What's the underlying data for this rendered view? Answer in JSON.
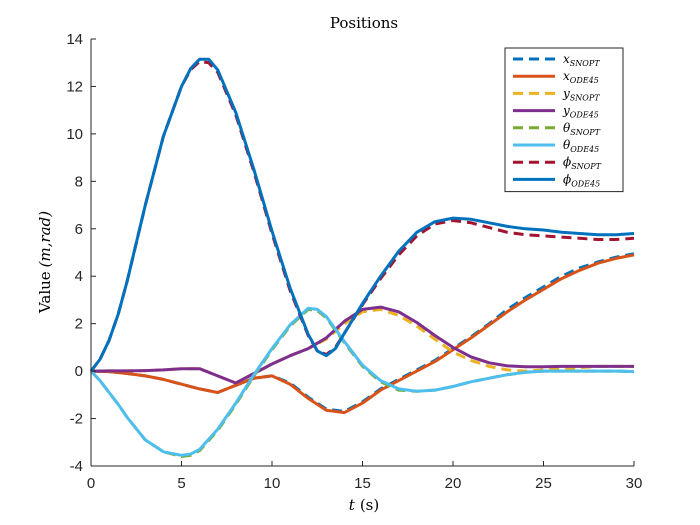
{
  "chart_data": {
    "type": "line",
    "title": "Positions",
    "xlabel": {
      "text": "t",
      "unit": "(s)"
    },
    "ylabel": {
      "text": "Value",
      "unit": "(m,rad)"
    },
    "xlim": [
      0,
      30
    ],
    "ylim": [
      -4,
      14
    ],
    "xticks": [
      0,
      5,
      10,
      15,
      20,
      25,
      30
    ],
    "yticks": [
      -4,
      -2,
      0,
      2,
      4,
      6,
      8,
      10,
      12,
      14
    ],
    "grid": false,
    "legend_position": "top-right",
    "series": [
      {
        "base": "x",
        "sub": "SNOPT",
        "color": "#0072BD",
        "style": "dashed",
        "x": [
          0,
          1,
          2,
          3,
          4,
          5,
          6,
          7,
          8,
          9,
          10,
          11,
          12,
          13,
          14,
          15,
          16,
          17,
          18,
          19,
          20,
          21,
          22,
          23,
          24,
          25,
          26,
          27,
          28,
          29,
          30
        ],
        "y": [
          0,
          -0.02,
          -0.1,
          -0.2,
          -0.35,
          -0.55,
          -0.75,
          -0.9,
          -0.6,
          -0.3,
          -0.2,
          -0.5,
          -1.1,
          -1.6,
          -1.7,
          -1.3,
          -0.75,
          -0.35,
          0.05,
          0.45,
          0.95,
          1.45,
          2.0,
          2.6,
          3.1,
          3.55,
          4.0,
          4.35,
          4.6,
          4.8,
          4.95
        ]
      },
      {
        "base": "x",
        "sub": "ODE45",
        "color": "#D95319",
        "style": "solid",
        "x": [
          0,
          1,
          2,
          3,
          4,
          5,
          6,
          7,
          8,
          9,
          10,
          11,
          12,
          13,
          14,
          15,
          16,
          17,
          18,
          19,
          20,
          21,
          22,
          23,
          24,
          25,
          26,
          27,
          28,
          29,
          30
        ],
        "y": [
          0,
          -0.02,
          -0.1,
          -0.2,
          -0.35,
          -0.55,
          -0.75,
          -0.9,
          -0.6,
          -0.3,
          -0.2,
          -0.55,
          -1.15,
          -1.65,
          -1.75,
          -1.35,
          -0.8,
          -0.4,
          0,
          0.4,
          0.9,
          1.4,
          1.95,
          2.5,
          3.0,
          3.45,
          3.9,
          4.25,
          4.55,
          4.75,
          4.9
        ]
      },
      {
        "base": "y",
        "sub": "SNOPT",
        "color": "#EDB120",
        "style": "dashed",
        "x": [
          0,
          1,
          2,
          3,
          4,
          5,
          6,
          7,
          8,
          9,
          10,
          11,
          12,
          13,
          14,
          15,
          16,
          17,
          18,
          19,
          20,
          21,
          22,
          23,
          24,
          25,
          26,
          27,
          28,
          29,
          30
        ],
        "y": [
          0,
          0.01,
          0.01,
          0.02,
          0.05,
          0.1,
          0.1,
          -0.2,
          -0.5,
          -0.1,
          0.3,
          0.65,
          0.95,
          1.35,
          2.0,
          2.5,
          2.6,
          2.35,
          1.9,
          1.35,
          0.8,
          0.45,
          0.2,
          0.05,
          0.0,
          0.05,
          0.1,
          0.15,
          0.2,
          0.2,
          0.2
        ]
      },
      {
        "base": "y",
        "sub": "ODE45",
        "color": "#7E2F8E",
        "style": "solid",
        "x": [
          0,
          1,
          2,
          3,
          4,
          5,
          6,
          7,
          8,
          9,
          10,
          11,
          12,
          13,
          14,
          15,
          16,
          17,
          18,
          19,
          20,
          21,
          22,
          23,
          24,
          25,
          26,
          27,
          28,
          29,
          30
        ],
        "y": [
          0,
          0.01,
          0.01,
          0.02,
          0.05,
          0.1,
          0.1,
          -0.2,
          -0.5,
          -0.1,
          0.3,
          0.65,
          0.95,
          1.4,
          2.1,
          2.6,
          2.7,
          2.5,
          2.05,
          1.5,
          1.0,
          0.6,
          0.35,
          0.22,
          0.18,
          0.18,
          0.2,
          0.2,
          0.2,
          0.2,
          0.2
        ]
      },
      {
        "base": "θ",
        "sub": "SNOPT",
        "color": "#77AC30",
        "style": "dashed",
        "x": [
          0,
          0.5,
          1,
          1.5,
          2,
          3,
          4,
          5,
          5.5,
          6,
          7,
          8,
          9,
          10,
          11,
          12,
          12.5,
          13,
          14,
          15,
          16,
          17,
          18,
          19,
          20,
          21,
          22,
          23,
          24,
          25,
          26,
          27,
          28,
          29,
          30
        ],
        "y": [
          0,
          -0.4,
          -0.9,
          -1.4,
          -1.95,
          -2.9,
          -3.4,
          -3.6,
          -3.55,
          -3.35,
          -2.5,
          -1.4,
          -0.2,
          0.9,
          1.9,
          2.6,
          2.55,
          2.25,
          1.2,
          0.2,
          -0.45,
          -0.8,
          -0.85,
          -0.8,
          -0.65,
          -0.45,
          -0.3,
          -0.15,
          -0.05,
          0.0,
          0.0,
          0.0,
          0.0,
          0.0,
          -0.02
        ]
      },
      {
        "base": "θ",
        "sub": "ODE45",
        "color": "#4DBEEE",
        "style": "solid",
        "x": [
          0,
          0.5,
          1,
          1.5,
          2,
          3,
          4,
          5,
          5.5,
          6,
          7,
          8,
          9,
          10,
          11,
          12,
          12.5,
          13,
          14,
          15,
          16,
          17,
          18,
          19,
          20,
          21,
          22,
          23,
          24,
          25,
          26,
          27,
          28,
          29,
          30
        ],
        "y": [
          0,
          -0.4,
          -0.9,
          -1.4,
          -1.95,
          -2.9,
          -3.4,
          -3.55,
          -3.5,
          -3.3,
          -2.45,
          -1.35,
          -0.15,
          0.95,
          1.95,
          2.65,
          2.6,
          2.3,
          1.25,
          0.25,
          -0.4,
          -0.75,
          -0.85,
          -0.8,
          -0.65,
          -0.45,
          -0.3,
          -0.15,
          -0.05,
          0.0,
          0.0,
          0.0,
          0.0,
          0.0,
          -0.02
        ]
      },
      {
        "base": "ϕ",
        "sub": "SNOPT",
        "color": "#A2142F",
        "style": "dashed",
        "x": [
          0,
          0.5,
          1,
          1.5,
          2,
          3,
          4,
          5,
          5.5,
          6,
          6.5,
          7,
          8,
          9,
          10,
          11,
          12,
          12.5,
          13,
          13.5,
          14,
          15,
          16,
          17,
          18,
          19,
          20,
          21,
          22,
          23,
          24,
          25,
          26,
          27,
          28,
          29,
          30
        ],
        "y": [
          0,
          0.5,
          1.3,
          2.4,
          3.8,
          7.0,
          9.9,
          12.0,
          12.7,
          13.05,
          13.0,
          12.6,
          10.8,
          8.4,
          5.8,
          3.4,
          1.5,
          0.85,
          0.7,
          1.0,
          1.6,
          2.8,
          3.9,
          4.9,
          5.7,
          6.2,
          6.35,
          6.25,
          6.05,
          5.85,
          5.75,
          5.7,
          5.65,
          5.6,
          5.55,
          5.55,
          5.6
        ]
      },
      {
        "base": "ϕ",
        "sub": "ODE45",
        "color": "#0072BD",
        "style": "solid",
        "x": [
          0,
          0.5,
          1,
          1.5,
          2,
          3,
          4,
          5,
          5.5,
          6,
          6.5,
          7,
          8,
          9,
          10,
          11,
          12,
          12.5,
          13,
          13.5,
          14,
          15,
          16,
          17,
          18,
          19,
          20,
          21,
          22,
          23,
          24,
          25,
          26,
          27,
          28,
          29,
          30
        ],
        "y": [
          0,
          0.5,
          1.3,
          2.4,
          3.8,
          7.0,
          9.9,
          12.0,
          12.75,
          13.15,
          13.15,
          12.7,
          10.9,
          8.5,
          5.9,
          3.5,
          1.55,
          0.85,
          0.65,
          0.95,
          1.6,
          2.85,
          4.0,
          5.05,
          5.85,
          6.3,
          6.45,
          6.4,
          6.25,
          6.1,
          6.0,
          5.95,
          5.85,
          5.8,
          5.75,
          5.75,
          5.8
        ]
      }
    ]
  }
}
